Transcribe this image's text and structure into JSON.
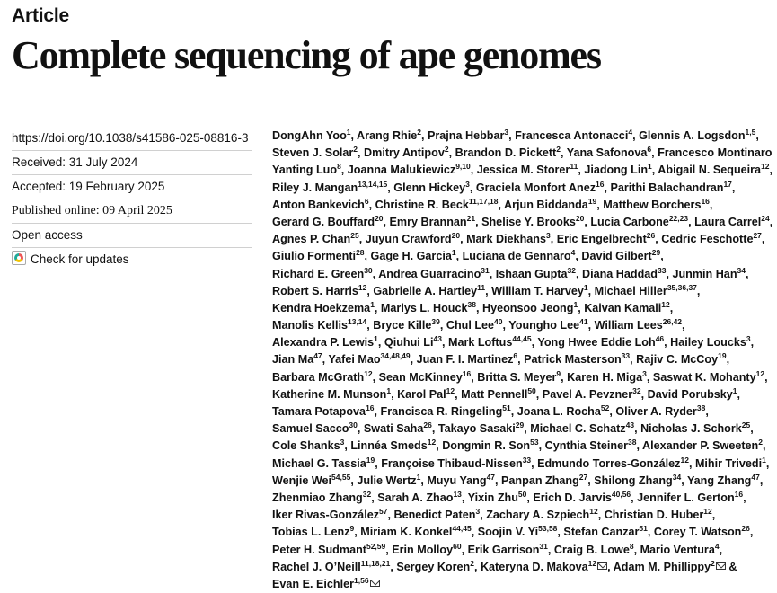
{
  "article_label": "Article",
  "title": "Complete sequencing of ape genomes",
  "meta": {
    "doi": "https://doi.org/10.1038/s41586-025-08816-3",
    "received": "Received: 31 July 2024",
    "accepted": "Accepted: 19 February 2025",
    "published": "Published online: 09 April 2025",
    "access": "Open access",
    "check_updates": "Check for updates"
  },
  "author_lines": [
    [
      {
        "n": "DongAhn Yoo",
        "s": "1",
        "sep": ", "
      },
      {
        "n": "Arang Rhie",
        "s": "2",
        "sep": ", "
      },
      {
        "n": "Prajna Hebbar",
        "s": "3",
        "sep": ", "
      },
      {
        "n": "Francesca Antonacci",
        "s": "4",
        "sep": ", "
      },
      {
        "n": "Glennis A. Logsdon",
        "s": "1,5",
        "sep": ","
      }
    ],
    [
      {
        "n": "Steven J. Solar",
        "s": "2",
        "sep": ", "
      },
      {
        "n": "Dmitry Antipov",
        "s": "2",
        "sep": ", "
      },
      {
        "n": "Brandon D. Pickett",
        "s": "2",
        "sep": ", "
      },
      {
        "n": "Yana Safonova",
        "s": "6",
        "sep": ", "
      },
      {
        "n": "Francesco Montinaro",
        "s": "4,7",
        "sep": ","
      }
    ],
    [
      {
        "n": "Yanting Luo",
        "s": "8",
        "sep": ", "
      },
      {
        "n": "Joanna Malukiewicz",
        "s": "9,10",
        "sep": ", "
      },
      {
        "n": "Jessica M. Storer",
        "s": "11",
        "sep": ", "
      },
      {
        "n": "Jiadong Lin",
        "s": "1",
        "sep": ", "
      },
      {
        "n": "Abigail N. Sequeira",
        "s": "12",
        "sep": ","
      }
    ],
    [
      {
        "n": "Riley J. Mangan",
        "s": "13,14,15",
        "sep": ", "
      },
      {
        "n": "Glenn Hickey",
        "s": "3",
        "sep": ", "
      },
      {
        "n": "Graciela Monfort Anez",
        "s": "16",
        "sep": ", "
      },
      {
        "n": "Parithi Balachandran",
        "s": "17",
        "sep": ","
      }
    ],
    [
      {
        "n": "Anton Bankevich",
        "s": "6",
        "sep": ", "
      },
      {
        "n": "Christine R. Beck",
        "s": "11,17,18",
        "sep": ", "
      },
      {
        "n": "Arjun Biddanda",
        "s": "19",
        "sep": ", "
      },
      {
        "n": "Matthew Borchers",
        "s": "16",
        "sep": ","
      }
    ],
    [
      {
        "n": "Gerard G. Bouffard",
        "s": "20",
        "sep": ", "
      },
      {
        "n": "Emry Brannan",
        "s": "21",
        "sep": ", "
      },
      {
        "n": "Shelise Y. Brooks",
        "s": "20",
        "sep": ", "
      },
      {
        "n": "Lucia Carbone",
        "s": "22,23",
        "sep": ", "
      },
      {
        "n": "Laura Carrel",
        "s": "24",
        "sep": ","
      }
    ],
    [
      {
        "n": "Agnes P. Chan",
        "s": "25",
        "sep": ", "
      },
      {
        "n": "Juyun Crawford",
        "s": "20",
        "sep": ", "
      },
      {
        "n": "Mark Diekhans",
        "s": "3",
        "sep": ", "
      },
      {
        "n": "Eric Engelbrecht",
        "s": "26",
        "sep": ", "
      },
      {
        "n": "Cedric Feschotte",
        "s": "27",
        "sep": ","
      }
    ],
    [
      {
        "n": "Giulio Formenti",
        "s": "28",
        "sep": ", "
      },
      {
        "n": "Gage H. Garcia",
        "s": "1",
        "sep": ", "
      },
      {
        "n": "Luciana de Gennaro",
        "s": "4",
        "sep": ", "
      },
      {
        "n": "David Gilbert",
        "s": "29",
        "sep": ","
      }
    ],
    [
      {
        "n": "Richard E. Green",
        "s": "30",
        "sep": ", "
      },
      {
        "n": "Andrea Guarracino",
        "s": "31",
        "sep": ", "
      },
      {
        "n": "Ishaan Gupta",
        "s": "32",
        "sep": ", "
      },
      {
        "n": "Diana Haddad",
        "s": "33",
        "sep": ", "
      },
      {
        "n": "Junmin Han",
        "s": "34",
        "sep": ","
      }
    ],
    [
      {
        "n": "Robert S. Harris",
        "s": "12",
        "sep": ", "
      },
      {
        "n": "Gabrielle A. Hartley",
        "s": "11",
        "sep": ", "
      },
      {
        "n": "William T. Harvey",
        "s": "1",
        "sep": ", "
      },
      {
        "n": "Michael Hiller",
        "s": "35,36,37",
        "sep": ","
      }
    ],
    [
      {
        "n": "Kendra Hoekzema",
        "s": "1",
        "sep": ", "
      },
      {
        "n": "Marlys L. Houck",
        "s": "38",
        "sep": ", "
      },
      {
        "n": "Hyeonsoo Jeong",
        "s": "1",
        "sep": ", "
      },
      {
        "n": "Kaivan Kamali",
        "s": "12",
        "sep": ","
      }
    ],
    [
      {
        "n": "Manolis Kellis",
        "s": "13,14",
        "sep": ", "
      },
      {
        "n": "Bryce Kille",
        "s": "39",
        "sep": ", "
      },
      {
        "n": "Chul Lee",
        "s": "40",
        "sep": ", "
      },
      {
        "n": "Youngho Lee",
        "s": "41",
        "sep": ", "
      },
      {
        "n": "William Lees",
        "s": "26,42",
        "sep": ","
      }
    ],
    [
      {
        "n": "Alexandra P. Lewis",
        "s": "1",
        "sep": ", "
      },
      {
        "n": "Qiuhui Li",
        "s": "43",
        "sep": ", "
      },
      {
        "n": "Mark Loftus",
        "s": "44,45",
        "sep": ", "
      },
      {
        "n": "Yong Hwee Eddie Loh",
        "s": "46",
        "sep": ", "
      },
      {
        "n": "Hailey Loucks",
        "s": "3",
        "sep": ","
      }
    ],
    [
      {
        "n": "Jian Ma",
        "s": "47",
        "sep": ", "
      },
      {
        "n": "Yafei Mao",
        "s": "34,48,49",
        "sep": ", "
      },
      {
        "n": "Juan F. I. Martinez",
        "s": "6",
        "sep": ", "
      },
      {
        "n": "Patrick Masterson",
        "s": "33",
        "sep": ", "
      },
      {
        "n": "Rajiv C. McCoy",
        "s": "19",
        "sep": ","
      }
    ],
    [
      {
        "n": "Barbara McGrath",
        "s": "12",
        "sep": ", "
      },
      {
        "n": "Sean McKinney",
        "s": "16",
        "sep": ", "
      },
      {
        "n": "Britta S. Meyer",
        "s": "9",
        "sep": ", "
      },
      {
        "n": "Karen H. Miga",
        "s": "3",
        "sep": ", "
      },
      {
        "n": "Saswat K. Mohanty",
        "s": "12",
        "sep": ","
      }
    ],
    [
      {
        "n": "Katherine M. Munson",
        "s": "1",
        "sep": ", "
      },
      {
        "n": "Karol Pal",
        "s": "12",
        "sep": ", "
      },
      {
        "n": "Matt Pennell",
        "s": "50",
        "sep": ", "
      },
      {
        "n": "Pavel A. Pevzner",
        "s": "32",
        "sep": ", "
      },
      {
        "n": "David Porubsky",
        "s": "1",
        "sep": ","
      }
    ],
    [
      {
        "n": "Tamara Potapova",
        "s": "16",
        "sep": ", "
      },
      {
        "n": "Francisca R. Ringeling",
        "s": "51",
        "sep": ", "
      },
      {
        "n": "Joana L. Rocha",
        "s": "52",
        "sep": ", "
      },
      {
        "n": "Oliver A. Ryder",
        "s": "38",
        "sep": ","
      }
    ],
    [
      {
        "n": "Samuel Sacco",
        "s": "30",
        "sep": ", "
      },
      {
        "n": "Swati Saha",
        "s": "26",
        "sep": ", "
      },
      {
        "n": "Takayo Sasaki",
        "s": "29",
        "sep": ", "
      },
      {
        "n": "Michael C. Schatz",
        "s": "43",
        "sep": ", "
      },
      {
        "n": "Nicholas J. Schork",
        "s": "25",
        "sep": ","
      }
    ],
    [
      {
        "n": "Cole Shanks",
        "s": "3",
        "sep": ", "
      },
      {
        "n": "Linnéa Smeds",
        "s": "12",
        "sep": ", "
      },
      {
        "n": "Dongmin R. Son",
        "s": "53",
        "sep": ", "
      },
      {
        "n": "Cynthia Steiner",
        "s": "38",
        "sep": ", "
      },
      {
        "n": "Alexander P. Sweeten",
        "s": "2",
        "sep": ","
      }
    ],
    [
      {
        "n": "Michael G. Tassia",
        "s": "19",
        "sep": ", "
      },
      {
        "n": "Françoise Thibaud-Nissen",
        "s": "33",
        "sep": ", "
      },
      {
        "n": "Edmundo Torres-González",
        "s": "12",
        "sep": ", "
      },
      {
        "n": "Mihir Trivedi",
        "s": "1",
        "sep": ","
      }
    ],
    [
      {
        "n": "Wenjie Wei",
        "s": "54,55",
        "sep": ", "
      },
      {
        "n": "Julie Wertz",
        "s": "1",
        "sep": ", "
      },
      {
        "n": "Muyu Yang",
        "s": "47",
        "sep": ", "
      },
      {
        "n": "Panpan Zhang",
        "s": "27",
        "sep": ", "
      },
      {
        "n": "Shilong Zhang",
        "s": "34",
        "sep": ", "
      },
      {
        "n": "Yang Zhang",
        "s": "47",
        "sep": ","
      }
    ],
    [
      {
        "n": "Zhenmiao Zhang",
        "s": "32",
        "sep": ", "
      },
      {
        "n": "Sarah A. Zhao",
        "s": "13",
        "sep": ", "
      },
      {
        "n": "Yixin Zhu",
        "s": "50",
        "sep": ", "
      },
      {
        "n": "Erich D. Jarvis",
        "s": "40,56",
        "sep": ", "
      },
      {
        "n": "Jennifer L. Gerton",
        "s": "16",
        "sep": ","
      }
    ],
    [
      {
        "n": "Iker Rivas-González",
        "s": "57",
        "sep": ", "
      },
      {
        "n": "Benedict Paten",
        "s": "3",
        "sep": ", "
      },
      {
        "n": "Zachary A. Szpiech",
        "s": "12",
        "sep": ", "
      },
      {
        "n": "Christian D. Huber",
        "s": "12",
        "sep": ","
      }
    ],
    [
      {
        "n": "Tobias L. Lenz",
        "s": "9",
        "sep": ", "
      },
      {
        "n": "Miriam K. Konkel",
        "s": "44,45",
        "sep": ", "
      },
      {
        "n": "Soojin V. Yi",
        "s": "53,58",
        "sep": ", "
      },
      {
        "n": "Stefan Canzar",
        "s": "51",
        "sep": ", "
      },
      {
        "n": "Corey T. Watson",
        "s": "26",
        "sep": ","
      }
    ],
    [
      {
        "n": "Peter H. Sudmant",
        "s": "52,59",
        "sep": ", "
      },
      {
        "n": "Erin Molloy",
        "s": "60",
        "sep": ", "
      },
      {
        "n": "Erik Garrison",
        "s": "31",
        "sep": ", "
      },
      {
        "n": "Craig B. Lowe",
        "s": "8",
        "sep": ", "
      },
      {
        "n": "Mario Ventura",
        "s": "4",
        "sep": ","
      }
    ],
    [
      {
        "n": "Rachel J. O’Neill",
        "s": "11,18,21",
        "sep": ", "
      },
      {
        "n": "Sergey Koren",
        "s": "2",
        "sep": ", "
      },
      {
        "n": "Kateryna D. Makova",
        "s": "12",
        "mail": true,
        "sep": ", "
      },
      {
        "n": "Adam M. Phillippy",
        "s": "2",
        "mail": true,
        "sep": " &"
      }
    ],
    [
      {
        "n": "Evan E. Eichler",
        "s": "1,56",
        "mail": true,
        "sep": ""
      }
    ]
  ]
}
